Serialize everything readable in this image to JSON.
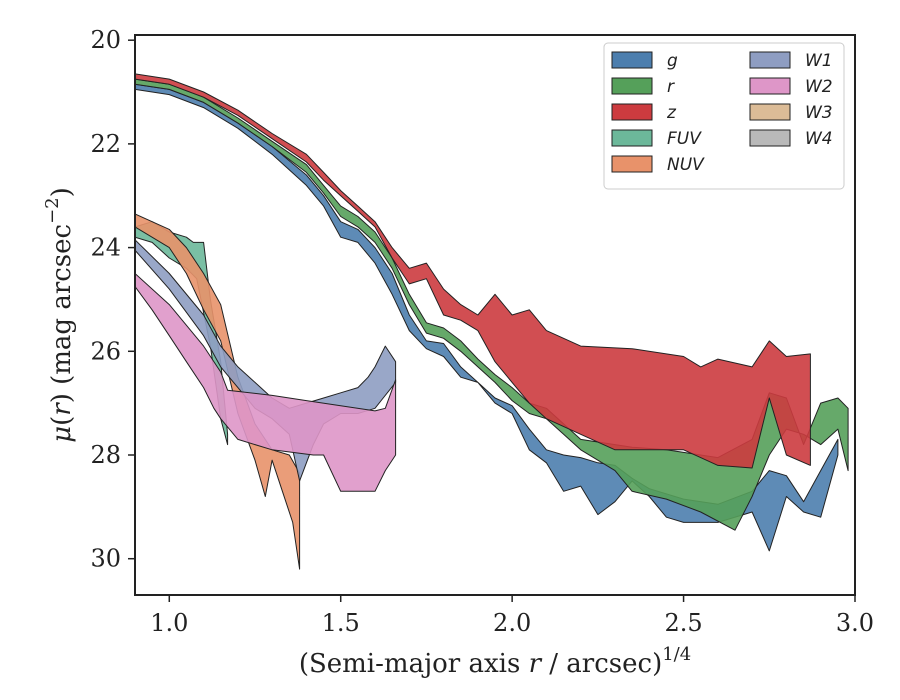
{
  "chart_data": {
    "type": "area",
    "xlabel": "(Semi-major axis r / arcsec)1/4",
    "ylabel": "μ(r) (mag arcsec−2)",
    "xlim": [
      0.9,
      3.0
    ],
    "ylim": [
      30.7,
      19.9
    ],
    "y_inverted": true,
    "xticks": [
      "1.0",
      "1.5",
      "2.0",
      "2.5",
      "3.0"
    ],
    "yticks": [
      "20",
      "22",
      "24",
      "26",
      "28",
      "30"
    ],
    "legend": {
      "placement": "top-right",
      "columns": 2
    },
    "series": [
      {
        "name": "g",
        "color": "#4c7eae",
        "upper": [
          [
            0.9,
            20.85
          ],
          [
            1.0,
            20.95
          ],
          [
            1.1,
            21.2
          ],
          [
            1.2,
            21.6
          ],
          [
            1.3,
            22.05
          ],
          [
            1.4,
            22.6
          ],
          [
            1.45,
            23.0
          ],
          [
            1.5,
            23.5
          ],
          [
            1.55,
            23.65
          ],
          [
            1.6,
            24.0
          ],
          [
            1.65,
            24.5
          ],
          [
            1.7,
            25.3
          ],
          [
            1.75,
            25.8
          ],
          [
            1.8,
            25.85
          ],
          [
            1.85,
            26.3
          ],
          [
            1.9,
            26.6
          ],
          [
            1.95,
            26.9
          ],
          [
            2.0,
            27.05
          ],
          [
            2.05,
            27.5
          ],
          [
            2.1,
            27.9
          ],
          [
            2.15,
            28.0
          ],
          [
            2.2,
            28.05
          ],
          [
            2.25,
            28.15
          ],
          [
            2.3,
            28.2
          ],
          [
            2.35,
            28.45
          ],
          [
            2.4,
            28.65
          ],
          [
            2.5,
            28.85
          ],
          [
            2.6,
            28.95
          ],
          [
            2.7,
            28.7
          ],
          [
            2.75,
            28.3
          ],
          [
            2.8,
            28.4
          ],
          [
            2.85,
            28.9
          ],
          [
            2.9,
            28.3
          ],
          [
            2.95,
            27.7
          ]
        ],
        "lower": [
          [
            0.9,
            20.95
          ],
          [
            1.0,
            21.05
          ],
          [
            1.1,
            21.3
          ],
          [
            1.2,
            21.7
          ],
          [
            1.3,
            22.2
          ],
          [
            1.4,
            22.8
          ],
          [
            1.45,
            23.2
          ],
          [
            1.5,
            23.8
          ],
          [
            1.55,
            23.9
          ],
          [
            1.6,
            24.3
          ],
          [
            1.65,
            24.9
          ],
          [
            1.7,
            25.6
          ],
          [
            1.75,
            25.95
          ],
          [
            1.8,
            26.1
          ],
          [
            1.85,
            26.5
          ],
          [
            1.9,
            26.6
          ],
          [
            1.95,
            27.0
          ],
          [
            2.0,
            27.2
          ],
          [
            2.05,
            27.9
          ],
          [
            2.1,
            28.15
          ],
          [
            2.15,
            28.7
          ],
          [
            2.2,
            28.6
          ],
          [
            2.25,
            29.15
          ],
          [
            2.3,
            28.9
          ],
          [
            2.35,
            28.5
          ],
          [
            2.4,
            28.8
          ],
          [
            2.45,
            29.2
          ],
          [
            2.5,
            29.3
          ],
          [
            2.6,
            29.3
          ],
          [
            2.7,
            29.1
          ],
          [
            2.75,
            29.85
          ],
          [
            2.8,
            28.8
          ],
          [
            2.85,
            29.1
          ],
          [
            2.9,
            29.2
          ],
          [
            2.95,
            28.0
          ]
        ]
      },
      {
        "name": "r",
        "color": "#55a05a",
        "upper": [
          [
            0.9,
            20.75
          ],
          [
            1.0,
            20.85
          ],
          [
            1.1,
            21.1
          ],
          [
            1.2,
            21.5
          ],
          [
            1.3,
            21.95
          ],
          [
            1.4,
            22.4
          ],
          [
            1.45,
            22.8
          ],
          [
            1.5,
            23.2
          ],
          [
            1.55,
            23.4
          ],
          [
            1.6,
            23.7
          ],
          [
            1.65,
            24.2
          ],
          [
            1.7,
            24.9
          ],
          [
            1.75,
            25.45
          ],
          [
            1.8,
            25.55
          ],
          [
            1.85,
            25.8
          ],
          [
            1.9,
            26.15
          ],
          [
            1.95,
            26.45
          ],
          [
            2.0,
            26.7
          ],
          [
            2.05,
            27.0
          ],
          [
            2.1,
            27.1
          ],
          [
            2.15,
            27.4
          ],
          [
            2.2,
            27.7
          ],
          [
            2.3,
            27.8
          ],
          [
            2.35,
            27.85
          ],
          [
            2.45,
            27.9
          ],
          [
            2.55,
            28.0
          ],
          [
            2.6,
            28.05
          ],
          [
            2.7,
            27.7
          ],
          [
            2.75,
            26.8
          ],
          [
            2.8,
            26.9
          ],
          [
            2.85,
            27.8
          ],
          [
            2.9,
            27.0
          ],
          [
            2.95,
            26.9
          ],
          [
            2.98,
            27.1
          ]
        ],
        "lower": [
          [
            0.9,
            20.85
          ],
          [
            1.0,
            20.95
          ],
          [
            1.1,
            21.2
          ],
          [
            1.2,
            21.6
          ],
          [
            1.3,
            22.05
          ],
          [
            1.4,
            22.55
          ],
          [
            1.45,
            22.95
          ],
          [
            1.5,
            23.4
          ],
          [
            1.55,
            23.6
          ],
          [
            1.6,
            23.9
          ],
          [
            1.65,
            24.4
          ],
          [
            1.7,
            25.1
          ],
          [
            1.75,
            25.65
          ],
          [
            1.8,
            25.75
          ],
          [
            1.85,
            26.0
          ],
          [
            1.9,
            26.3
          ],
          [
            1.95,
            26.6
          ],
          [
            2.0,
            26.95
          ],
          [
            2.05,
            27.2
          ],
          [
            2.1,
            27.3
          ],
          [
            2.15,
            27.6
          ],
          [
            2.2,
            27.9
          ],
          [
            2.3,
            28.3
          ],
          [
            2.35,
            28.7
          ],
          [
            2.45,
            28.85
          ],
          [
            2.55,
            29.1
          ],
          [
            2.65,
            29.45
          ],
          [
            2.7,
            28.8
          ],
          [
            2.75,
            28.0
          ],
          [
            2.8,
            27.5
          ],
          [
            2.85,
            27.6
          ],
          [
            2.9,
            27.8
          ],
          [
            2.95,
            27.5
          ],
          [
            2.98,
            28.3
          ]
        ]
      },
      {
        "name": "z",
        "color": "#cc3b3f",
        "upper": [
          [
            0.9,
            20.65
          ],
          [
            1.0,
            20.75
          ],
          [
            1.1,
            21.0
          ],
          [
            1.2,
            21.35
          ],
          [
            1.3,
            21.8
          ],
          [
            1.4,
            22.2
          ],
          [
            1.45,
            22.55
          ],
          [
            1.5,
            22.9
          ],
          [
            1.55,
            23.2
          ],
          [
            1.6,
            23.5
          ],
          [
            1.65,
            24.0
          ],
          [
            1.7,
            24.4
          ],
          [
            1.75,
            24.3
          ],
          [
            1.8,
            24.8
          ],
          [
            1.85,
            25.1
          ],
          [
            1.9,
            25.3
          ],
          [
            1.95,
            24.9
          ],
          [
            2.0,
            25.3
          ],
          [
            2.05,
            25.2
          ],
          [
            2.1,
            25.6
          ],
          [
            2.2,
            25.9
          ],
          [
            2.35,
            25.95
          ],
          [
            2.5,
            26.1
          ],
          [
            2.55,
            26.3
          ],
          [
            2.6,
            26.15
          ],
          [
            2.7,
            26.3
          ],
          [
            2.75,
            25.8
          ],
          [
            2.8,
            26.1
          ],
          [
            2.87,
            26.05
          ]
        ],
        "lower": [
          [
            0.9,
            20.75
          ],
          [
            1.0,
            20.85
          ],
          [
            1.1,
            21.1
          ],
          [
            1.2,
            21.45
          ],
          [
            1.3,
            21.9
          ],
          [
            1.4,
            22.35
          ],
          [
            1.45,
            22.7
          ],
          [
            1.5,
            23.0
          ],
          [
            1.55,
            23.3
          ],
          [
            1.6,
            23.6
          ],
          [
            1.65,
            24.2
          ],
          [
            1.7,
            24.7
          ],
          [
            1.75,
            24.6
          ],
          [
            1.8,
            25.3
          ],
          [
            1.85,
            25.4
          ],
          [
            1.9,
            25.6
          ],
          [
            1.95,
            26.2
          ],
          [
            2.0,
            26.6
          ],
          [
            2.05,
            27.0
          ],
          [
            2.1,
            27.3
          ],
          [
            2.2,
            27.6
          ],
          [
            2.3,
            27.9
          ],
          [
            2.4,
            27.9
          ],
          [
            2.5,
            27.9
          ],
          [
            2.6,
            28.2
          ],
          [
            2.7,
            28.25
          ],
          [
            2.75,
            26.9
          ],
          [
            2.8,
            28.0
          ],
          [
            2.87,
            28.2
          ]
        ]
      },
      {
        "name": "FUV",
        "color": "#6cb89a",
        "upper": [
          [
            0.9,
            23.6
          ],
          [
            0.95,
            23.5
          ],
          [
            1.0,
            23.7
          ],
          [
            1.05,
            23.8
          ],
          [
            1.07,
            23.9
          ],
          [
            1.1,
            23.9
          ],
          [
            1.12,
            25.0
          ],
          [
            1.15,
            26.2
          ],
          [
            1.17,
            27.6
          ]
        ],
        "lower": [
          [
            0.9,
            23.8
          ],
          [
            0.95,
            23.9
          ],
          [
            1.0,
            24.2
          ],
          [
            1.05,
            24.4
          ],
          [
            1.08,
            24.6
          ],
          [
            1.12,
            25.9
          ],
          [
            1.15,
            27.3
          ],
          [
            1.17,
            27.8
          ]
        ]
      },
      {
        "name": "NUV",
        "color": "#e8926a",
        "upper": [
          [
            0.9,
            23.35
          ],
          [
            1.0,
            23.65
          ],
          [
            1.05,
            24.0
          ],
          [
            1.1,
            24.5
          ],
          [
            1.15,
            25.1
          ],
          [
            1.2,
            26.5
          ],
          [
            1.25,
            27.4
          ],
          [
            1.3,
            27.9
          ],
          [
            1.35,
            28.0
          ],
          [
            1.38,
            28.35
          ]
        ],
        "lower": [
          [
            0.9,
            23.6
          ],
          [
            1.0,
            24.0
          ],
          [
            1.05,
            24.5
          ],
          [
            1.1,
            25.2
          ],
          [
            1.15,
            25.8
          ],
          [
            1.2,
            27.2
          ],
          [
            1.25,
            28.1
          ],
          [
            1.28,
            28.8
          ],
          [
            1.3,
            28.1
          ],
          [
            1.33,
            28.7
          ],
          [
            1.36,
            29.3
          ],
          [
            1.38,
            30.2
          ]
        ]
      },
      {
        "name": "W1",
        "color": "#8e9dc2",
        "upper": [
          [
            0.9,
            23.85
          ],
          [
            1.0,
            24.5
          ],
          [
            1.1,
            25.3
          ],
          [
            1.15,
            25.9
          ],
          [
            1.2,
            26.3
          ],
          [
            1.25,
            26.6
          ],
          [
            1.3,
            26.9
          ],
          [
            1.35,
            27.1
          ],
          [
            1.4,
            27.0
          ],
          [
            1.45,
            26.9
          ],
          [
            1.5,
            26.8
          ],
          [
            1.55,
            26.7
          ],
          [
            1.58,
            26.5
          ],
          [
            1.6,
            26.3
          ],
          [
            1.63,
            25.9
          ],
          [
            1.66,
            26.2
          ]
        ],
        "lower": [
          [
            0.9,
            24.05
          ],
          [
            1.0,
            24.8
          ],
          [
            1.1,
            25.7
          ],
          [
            1.15,
            26.3
          ],
          [
            1.2,
            26.7
          ],
          [
            1.25,
            27.1
          ],
          [
            1.3,
            27.3
          ],
          [
            1.35,
            27.6
          ],
          [
            1.38,
            28.5
          ],
          [
            1.42,
            27.8
          ],
          [
            1.45,
            27.4
          ],
          [
            1.5,
            27.2
          ],
          [
            1.55,
            27.2
          ],
          [
            1.6,
            27.1
          ],
          [
            1.66,
            26.6
          ]
        ]
      },
      {
        "name": "W2",
        "color": "#de96c8",
        "upper": [
          [
            0.9,
            24.5
          ],
          [
            1.0,
            25.1
          ],
          [
            1.1,
            25.9
          ],
          [
            1.15,
            26.4
          ],
          [
            1.17,
            26.75
          ],
          [
            1.3,
            26.85
          ],
          [
            1.4,
            26.95
          ],
          [
            1.5,
            27.05
          ],
          [
            1.6,
            27.15
          ],
          [
            1.63,
            27.1
          ],
          [
            1.66,
            26.55
          ]
        ],
        "lower": [
          [
            0.9,
            24.75
          ],
          [
            0.95,
            25.2
          ],
          [
            1.0,
            25.7
          ],
          [
            1.05,
            26.2
          ],
          [
            1.1,
            26.7
          ],
          [
            1.13,
            27.1
          ],
          [
            1.15,
            27.3
          ],
          [
            1.2,
            27.7
          ],
          [
            1.3,
            27.9
          ],
          [
            1.42,
            28.0
          ],
          [
            1.45,
            28.0
          ],
          [
            1.5,
            28.7
          ],
          [
            1.6,
            28.7
          ],
          [
            1.63,
            28.3
          ],
          [
            1.66,
            28.0
          ]
        ]
      },
      {
        "name": "W3",
        "color": "#dcbc97",
        "upper": [],
        "lower": []
      },
      {
        "name": "W4",
        "color": "#b9b9b9",
        "upper": [],
        "lower": []
      }
    ]
  }
}
